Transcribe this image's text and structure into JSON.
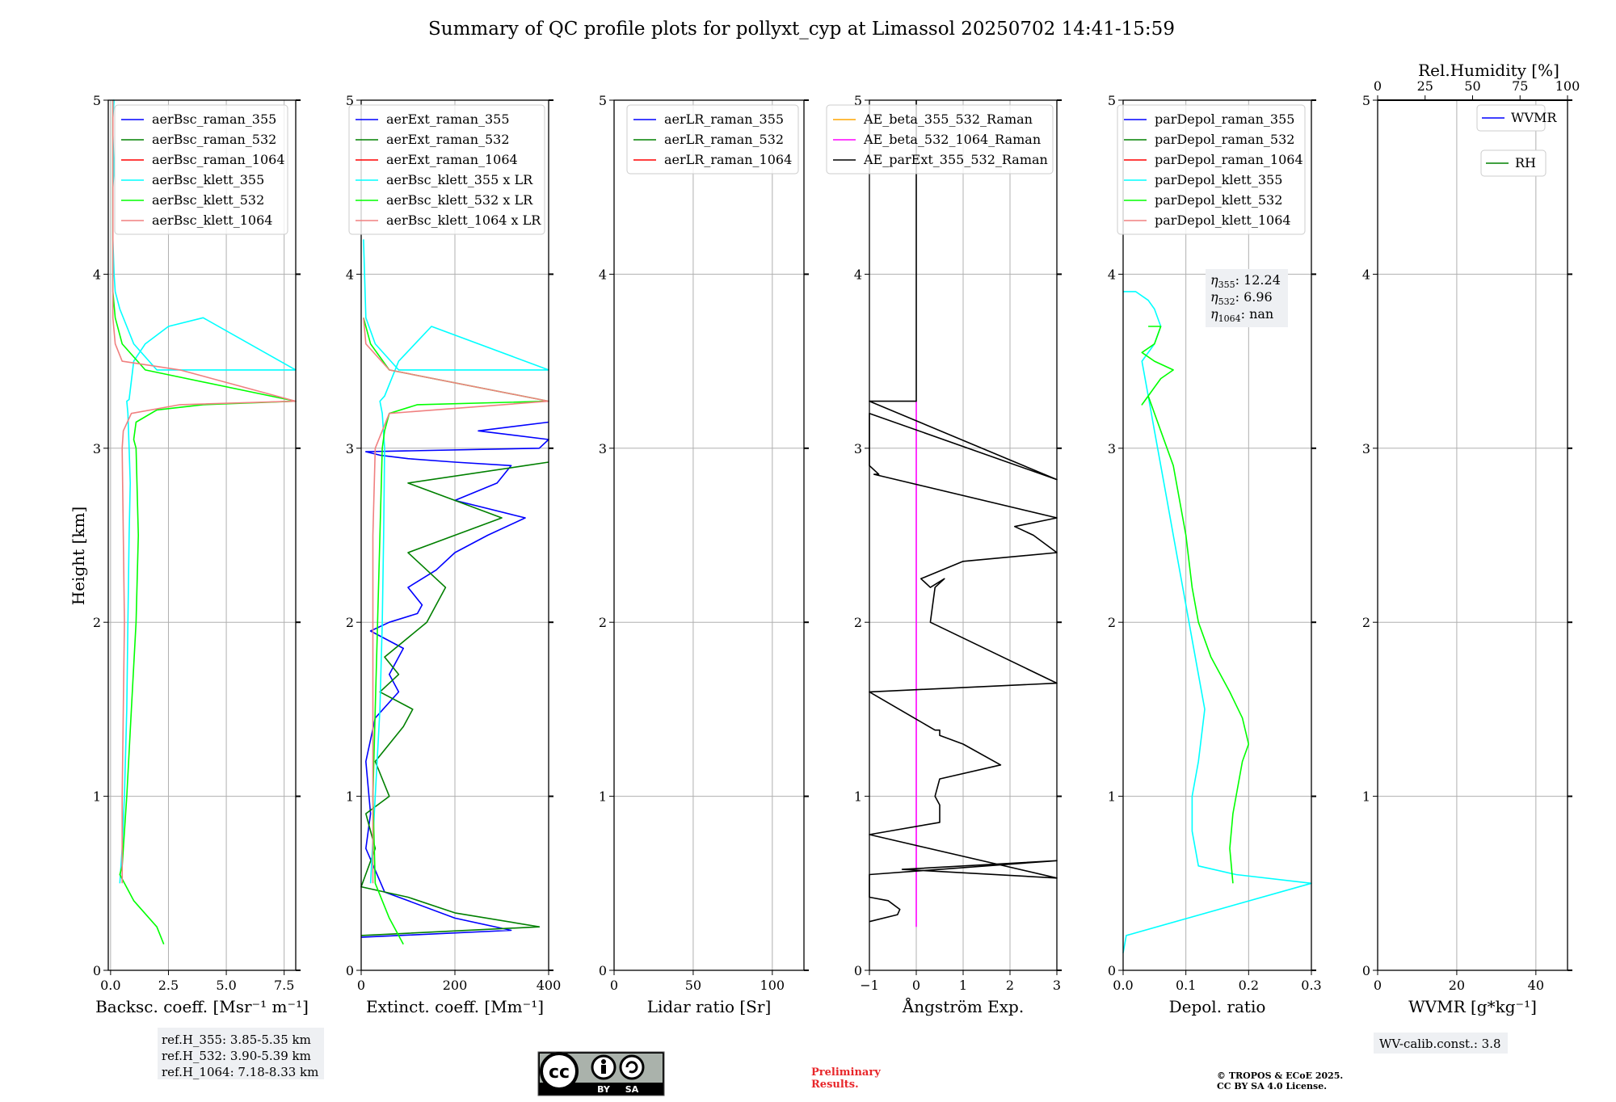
{
  "title": "Summary of QC profile plots for pollyxt_cyp at Limassol 20250702 14:41-15:59",
  "ylabel": "Height [km]",
  "colors": {
    "blue": "#0000ff",
    "green": "#008000",
    "red": "#ff0000",
    "cyan": "#00ffff",
    "lime": "#00ff00",
    "salmon": "#f08080",
    "orange": "#ffa500",
    "magenta": "#ff00ff",
    "black": "#000000",
    "grid": "#b0b0b0",
    "note_bg": "#eef0f3",
    "prelim": "#e8262a"
  },
  "panels": [
    {
      "xlabel": "Backsc. coeff. [Msr$^{-1}$ m$^{-1}$]",
      "xlabel_display": "Backsc. coeff. [Msr⁻¹ m⁻¹]",
      "xticks": [
        "0.0",
        "2.5",
        "5.0",
        "7.5"
      ],
      "legend": [
        {
          "label": "aerBsc_raman_355",
          "color": "#0000ff"
        },
        {
          "label": "aerBsc_raman_532",
          "color": "#008000"
        },
        {
          "label": "aerBsc_raman_1064",
          "color": "#ff0000"
        },
        {
          "label": "aerBsc_klett_355",
          "color": "#00ffff"
        },
        {
          "label": "aerBsc_klett_532",
          "color": "#00ff00"
        },
        {
          "label": "aerBsc_klett_1064",
          "color": "#f08080"
        }
      ]
    },
    {
      "xlabel_display": "Extinct. coeff. [Mm⁻¹]",
      "xticks": [
        "0",
        "200",
        "400"
      ],
      "legend": [
        {
          "label": "aerExt_raman_355",
          "color": "#0000ff"
        },
        {
          "label": "aerExt_raman_532",
          "color": "#008000"
        },
        {
          "label": "aerExt_raman_1064",
          "color": "#ff0000"
        },
        {
          "label": "aerBsc_klett_355 x LR",
          "color": "#00ffff"
        },
        {
          "label": "aerBsc_klett_532 x LR",
          "color": "#00ff00"
        },
        {
          "label": "aerBsc_klett_1064 x LR",
          "color": "#f08080"
        }
      ]
    },
    {
      "xlabel_display": "Lidar ratio [Sr]",
      "xticks": [
        "0",
        "50",
        "100"
      ],
      "legend": [
        {
          "label": "aerLR_raman_355",
          "color": "#0000ff"
        },
        {
          "label": "aerLR_raman_532",
          "color": "#008000"
        },
        {
          "label": "aerLR_raman_1064",
          "color": "#ff0000"
        }
      ]
    },
    {
      "xlabel_display": "Ångström Exp.",
      "xticks": [
        "−1",
        "0",
        "1",
        "2",
        "3"
      ],
      "legend": [
        {
          "label": "AE_beta_355_532_Raman",
          "color": "#ffa500"
        },
        {
          "label": "AE_beta_532_1064_Raman",
          "color": "#ff00ff"
        },
        {
          "label": "AE_parExt_355_532_Raman",
          "color": "#000000"
        }
      ]
    },
    {
      "xlabel_display": "Depol. ratio",
      "xticks": [
        "0.0",
        "0.1",
        "0.2",
        "0.3"
      ],
      "legend": [
        {
          "label": "parDepol_raman_355",
          "color": "#0000ff"
        },
        {
          "label": "parDepol_raman_532",
          "color": "#008000"
        },
        {
          "label": "parDepol_raman_1064",
          "color": "#ff0000"
        },
        {
          "label": "parDepol_klett_355",
          "color": "#00ffff"
        },
        {
          "label": "parDepol_klett_532",
          "color": "#00ff00"
        },
        {
          "label": "parDepol_klett_1064",
          "color": "#f08080"
        }
      ],
      "eta": {
        "e355": "12.24",
        "e532": "6.96",
        "e1064": "nan"
      }
    },
    {
      "xlabel_display": "WVMR [g*kg⁻¹]",
      "xticks": [
        "0",
        "20",
        "40"
      ],
      "top_label": "Rel.Humidity [%]",
      "top_ticks": [
        "0",
        "25",
        "50",
        "75",
        "100"
      ],
      "legend": [
        {
          "label": "WVMR",
          "color": "#0000ff"
        },
        {
          "label": "RH",
          "color": "#008000"
        }
      ]
    }
  ],
  "yticks": [
    "0",
    "1",
    "2",
    "3",
    "4",
    "5"
  ],
  "ref_heights": [
    "ref.H_355: 3.85-5.35 km",
    "ref.H_532: 3.90-5.39 km",
    "ref.H_1064: 7.18-8.33 km"
  ],
  "wv_calib": "WV-calib.const.: 3.8",
  "preliminary": [
    "Preliminary",
    "Results."
  ],
  "copyright": [
    "© TROPOS & ECoE 2025.",
    "CC BY SA 4.0 License."
  ],
  "license_badge": {
    "by": "BY",
    "sa": "SA"
  },
  "chart_data": [
    {
      "type": "line",
      "xlabel": "Backsc. coeff. [Msr⁻¹ m⁻¹]",
      "ylabel": "Height [km]",
      "xlim": [
        -0.1,
        8.0
      ],
      "ylim": [
        0,
        5
      ],
      "series": [
        {
          "name": "aerBsc_klett_355",
          "x": [
            0.4,
            0.5,
            0.6,
            0.7,
            0.75,
            0.8,
            0.85,
            0.8,
            0.75,
            0.7,
            0.8,
            1.0,
            1.5,
            2.5,
            4.0,
            8.0,
            2.0,
            1.0,
            0.7,
            0.4,
            0.2,
            0.15,
            0.1,
            0.1,
            0.15,
            0.1,
            0.1,
            0.15,
            0.1
          ],
          "y": [
            0.5,
            0.7,
            1.0,
            1.5,
            2.0,
            2.5,
            2.8,
            3.0,
            3.2,
            3.27,
            3.28,
            3.5,
            3.6,
            3.7,
            3.75,
            3.45,
            3.45,
            3.6,
            3.7,
            3.8,
            3.9,
            4.0,
            4.2,
            4.5,
            4.6,
            4.8,
            4.9,
            5.0,
            5.0
          ]
        },
        {
          "name": "aerBsc_klett_532",
          "x": [
            2.3,
            2.0,
            1.0,
            0.4,
            0.5,
            0.7,
            0.9,
            1.1,
            1.2,
            1.1,
            1.0,
            1.1,
            2.0,
            4.0,
            8.0,
            1.5,
            0.5,
            0.2,
            0.1,
            0.1,
            0.1
          ],
          "y": [
            0.15,
            0.25,
            0.4,
            0.55,
            0.6,
            1.0,
            1.5,
            2.0,
            2.5,
            3.0,
            3.05,
            3.15,
            3.22,
            3.25,
            3.27,
            3.45,
            3.6,
            3.75,
            3.9,
            4.5,
            5.0
          ]
        },
        {
          "name": "aerBsc_klett_1064",
          "x": [
            0.5,
            0.5,
            0.55,
            0.6,
            0.55,
            0.5,
            0.55,
            0.9,
            3.0,
            8.0,
            3.0,
            0.5,
            0.2,
            0.1,
            0.1
          ],
          "y": [
            0.5,
            1.0,
            1.5,
            2.0,
            2.5,
            3.0,
            3.1,
            3.2,
            3.25,
            3.27,
            3.45,
            3.5,
            3.6,
            3.75,
            5.0
          ]
        }
      ]
    },
    {
      "type": "line",
      "xlabel": "Extinct. coeff. [Mm⁻¹]",
      "ylabel": "Height [km]",
      "xlim": [
        0,
        400
      ],
      "ylim": [
        0,
        5
      ],
      "series": [
        {
          "name": "aerExt_raman_355",
          "x": [
            0,
            320,
            200,
            100,
            50,
            10,
            20,
            10,
            30,
            80,
            60,
            90,
            20,
            60,
            120,
            130,
            100,
            160,
            200,
            270,
            350,
            200,
            290,
            320,
            200,
            100,
            40,
            10,
            380,
            400,
            250,
            400
          ],
          "y": [
            0.19,
            0.23,
            0.3,
            0.4,
            0.45,
            0.7,
            0.9,
            1.2,
            1.45,
            1.6,
            1.7,
            1.85,
            1.95,
            2.0,
            2.05,
            2.1,
            2.2,
            2.3,
            2.4,
            2.5,
            2.6,
            2.7,
            2.8,
            2.9,
            2.92,
            2.94,
            2.96,
            2.98,
            3.0,
            3.05,
            3.1,
            3.15
          ]
        },
        {
          "name": "aerExt_raman_532",
          "x": [
            0,
            380,
            200,
            100,
            0,
            30,
            10,
            60,
            30,
            90,
            110,
            40,
            80,
            50,
            140,
            180,
            100,
            200,
            300,
            200,
            100,
            350,
            400
          ],
          "y": [
            0.2,
            0.25,
            0.33,
            0.42,
            0.48,
            0.7,
            0.9,
            1.0,
            1.2,
            1.4,
            1.5,
            1.6,
            1.7,
            1.8,
            2.0,
            2.2,
            2.4,
            2.5,
            2.6,
            2.7,
            2.8,
            2.9,
            2.92
          ]
        },
        {
          "name": "aerBsc_klett_355 x LR",
          "x": [
            20,
            30,
            40,
            45,
            48,
            50,
            45,
            40,
            50,
            80,
            150,
            400,
            80,
            30,
            10,
            5
          ],
          "y": [
            0.5,
            1.0,
            1.5,
            2.0,
            2.5,
            3.0,
            3.2,
            3.27,
            3.3,
            3.5,
            3.7,
            3.45,
            3.45,
            3.6,
            3.75,
            4.2
          ]
        },
        {
          "name": "aerBsc_klett_532 x LR",
          "x": [
            90,
            60,
            30,
            25,
            30,
            35,
            40,
            45,
            50,
            60,
            120,
            400,
            60,
            20,
            5
          ],
          "y": [
            0.15,
            0.3,
            0.5,
            1.0,
            1.5,
            2.0,
            2.5,
            3.0,
            3.1,
            3.2,
            3.25,
            3.27,
            3.45,
            3.6,
            3.75
          ]
        },
        {
          "name": "aerBsc_klett_1064 x LR",
          "x": [
            25,
            25,
            25,
            25,
            25,
            30,
            60,
            400,
            60,
            10,
            5
          ],
          "y": [
            0.5,
            1.0,
            1.5,
            2.0,
            2.5,
            3.0,
            3.2,
            3.27,
            3.45,
            3.6,
            3.75
          ]
        }
      ]
    },
    {
      "type": "line",
      "xlabel": "Lidar ratio [Sr]",
      "ylabel": "Height [km]",
      "xlim": [
        0,
        120
      ],
      "ylim": [
        0,
        5
      ],
      "series": []
    },
    {
      "type": "line",
      "xlabel": "Ångström Exp.",
      "ylabel": "Height [km]",
      "xlim": [
        -1,
        3
      ],
      "ylim": [
        0,
        5
      ],
      "series": [
        {
          "name": "AE_beta_532_1064_Raman",
          "x": [
            0,
            0
          ],
          "y": [
            0.25,
            3.27
          ]
        },
        {
          "name": "AE_parExt_355_532_Raman",
          "x": [
            -1,
            -0.4,
            -0.35,
            -0.6,
            -1,
            -1,
            3,
            -0.3,
            3,
            -1,
            -1,
            0.5,
            0.5,
            0.4,
            0.5,
            1.8,
            1.0,
            0.5,
            0.5,
            0.4,
            -1,
            -1,
            3,
            0.3,
            0.4,
            0.6,
            0.3,
            0.1,
            1.0,
            3.0,
            2.5,
            2.1,
            3.0,
            -0.9,
            -0.8,
            -1,
            -1,
            3.0,
            -1,
            -1,
            0,
            0
          ],
          "y": [
            0.28,
            0.32,
            0.35,
            0.4,
            0.42,
            0.55,
            0.63,
            0.58,
            0.53,
            0.78,
            0.78,
            0.85,
            0.95,
            1.0,
            1.1,
            1.18,
            1.3,
            1.35,
            1.38,
            1.38,
            1.6,
            1.6,
            1.65,
            2.0,
            2.2,
            2.25,
            2.2,
            2.25,
            2.35,
            2.4,
            2.5,
            2.55,
            2.6,
            2.85,
            2.85,
            2.9,
            3.2,
            2.82,
            3.27,
            3.27,
            3.27,
            5.0
          ]
        }
      ]
    },
    {
      "type": "line",
      "xlabel": "Depol. ratio",
      "ylabel": "Height [km]",
      "xlim": [
        0,
        0.3
      ],
      "ylim": [
        0,
        5
      ],
      "annotations": [
        "η355: 12.24",
        "η532: 6.96",
        "η1064: nan"
      ],
      "series": [
        {
          "name": "parDepol_klett_355",
          "x": [
            0.0,
            0.005,
            0.3,
            0.18,
            0.12,
            0.11,
            0.11,
            0.12,
            0.13,
            0.12,
            0.11,
            0.1,
            0.09,
            0.08,
            0.07,
            0.06,
            0.05,
            0.04,
            0.03,
            0.05,
            0.06,
            0.05,
            0.04,
            0.02,
            0.0
          ],
          "y": [
            0.1,
            0.2,
            0.5,
            0.55,
            0.6,
            0.8,
            1.0,
            1.2,
            1.5,
            1.7,
            1.9,
            2.1,
            2.3,
            2.5,
            2.7,
            2.9,
            3.1,
            3.3,
            3.5,
            3.6,
            3.7,
            3.8,
            3.85,
            3.9,
            3.9
          ]
        },
        {
          "name": "parDepol_klett_532",
          "x": [
            0.175,
            0.17,
            0.175,
            0.18,
            0.19,
            0.2,
            0.19,
            0.17,
            0.14,
            0.12,
            0.11,
            0.1,
            0.09,
            0.08,
            0.06,
            0.04,
            0.03,
            0.05,
            0.06,
            0.08,
            0.05,
            0.03,
            0.05,
            0.06,
            0.04
          ],
          "y": [
            0.5,
            0.7,
            0.9,
            1.0,
            1.2,
            1.3,
            1.45,
            1.6,
            1.8,
            2.0,
            2.2,
            2.5,
            2.7,
            2.9,
            3.1,
            3.3,
            3.25,
            3.35,
            3.4,
            3.45,
            3.5,
            3.55,
            3.6,
            3.7,
            3.7
          ]
        }
      ]
    },
    {
      "type": "line",
      "xlabel": "WVMR [g*kg⁻¹]",
      "ylabel": "Height [km]",
      "xlim": [
        0,
        48
      ],
      "ylim": [
        0,
        5
      ],
      "x2label": "Rel.Humidity [%]",
      "x2lim": [
        0,
        100
      ],
      "series": []
    }
  ]
}
